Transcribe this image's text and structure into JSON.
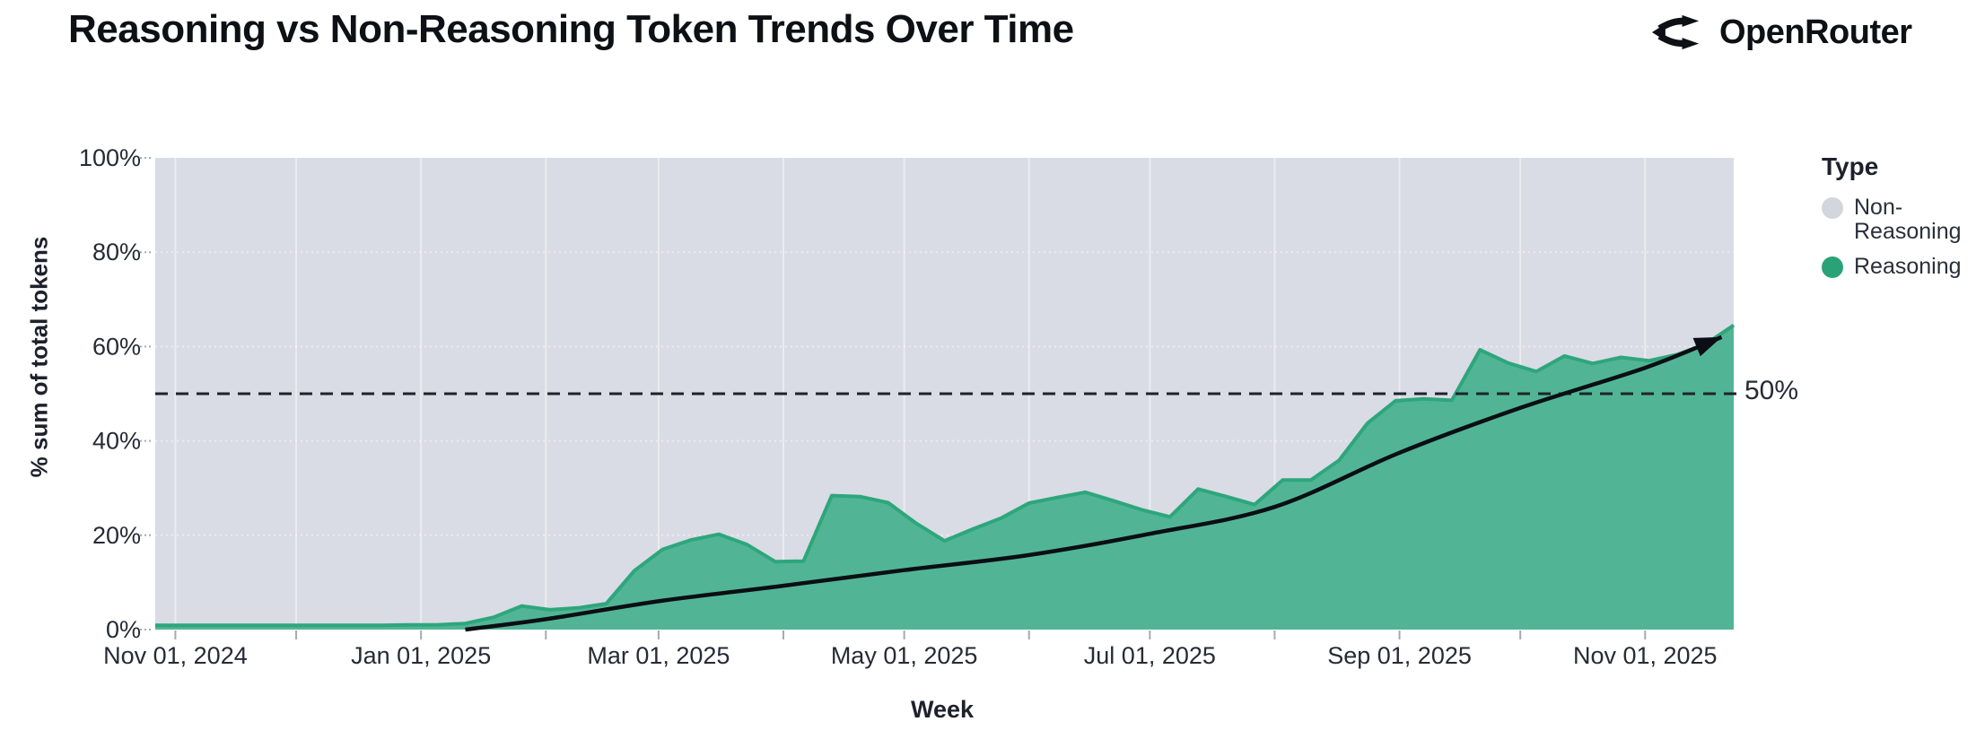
{
  "header": {
    "title": "Reasoning vs Non-Reasoning Token Trends Over Time",
    "brand": "OpenRouter"
  },
  "colors": {
    "plot_bg": "#d9dce4",
    "area_fill": "#51b595",
    "area_stroke": "#2ea67c",
    "trend_line": "#0b0e14",
    "dashed_rule": "#1e222c",
    "gridline": "rgba(255,255,255,0.45)",
    "tick_mark": "#a3aab6",
    "axis_text": "#262b35",
    "legend_nonreasoning_dot": "#d3d6dc",
    "legend_reasoning_dot": "#2aa277"
  },
  "chart_data": {
    "type": "area",
    "stacked_percent": true,
    "title": "Reasoning vs Non-Reasoning Token Trends Over Time",
    "xlabel": "Week",
    "ylabel": "% sum of total tokens",
    "x_domain": [
      "2024-10-27",
      "2025-11-23"
    ],
    "ylim": [
      0,
      100
    ],
    "grid": "monthly vertical, dotted horizontal at 20/40/60/80",
    "legend_position": "right",
    "y_ticks": [
      {
        "value": 0,
        "label": "0%"
      },
      {
        "value": 20,
        "label": "20%"
      },
      {
        "value": 40,
        "label": "40%"
      },
      {
        "value": 60,
        "label": "60%"
      },
      {
        "value": 80,
        "label": "80%"
      },
      {
        "value": 100,
        "label": "100%"
      }
    ],
    "x_ticks": [
      {
        "date": "2024-11-01",
        "label": "Nov 01, 2024"
      },
      {
        "date": "2025-01-01",
        "label": "Jan 01, 2025"
      },
      {
        "date": "2025-03-01",
        "label": "Mar 01, 2025"
      },
      {
        "date": "2025-05-01",
        "label": "May 01, 2025"
      },
      {
        "date": "2025-07-01",
        "label": "Jul 01, 2025"
      },
      {
        "date": "2025-09-01",
        "label": "Sep 01, 2025"
      },
      {
        "date": "2025-11-01",
        "label": "Nov 01, 2025"
      }
    ],
    "series": [
      {
        "name": "Reasoning",
        "unit": "% of total tokens",
        "points": [
          [
            "2024-10-27",
            0.9
          ],
          [
            "2024-11-03",
            0.9
          ],
          [
            "2024-11-10",
            0.9
          ],
          [
            "2024-11-17",
            0.9
          ],
          [
            "2024-11-24",
            0.9
          ],
          [
            "2024-12-01",
            0.9
          ],
          [
            "2024-12-08",
            0.9
          ],
          [
            "2024-12-15",
            0.9
          ],
          [
            "2024-12-22",
            0.9
          ],
          [
            "2024-12-29",
            1.0
          ],
          [
            "2025-01-05",
            1.0
          ],
          [
            "2025-01-12",
            1.3
          ],
          [
            "2025-01-19",
            2.6
          ],
          [
            "2025-01-26",
            5.0
          ],
          [
            "2025-02-02",
            4.2
          ],
          [
            "2025-02-09",
            4.6
          ],
          [
            "2025-02-16",
            5.5
          ],
          [
            "2025-02-23",
            12.5
          ],
          [
            "2025-03-02",
            17.0
          ],
          [
            "2025-03-09",
            19.0
          ],
          [
            "2025-03-16",
            20.2
          ],
          [
            "2025-03-23",
            18.0
          ],
          [
            "2025-03-30",
            14.4
          ],
          [
            "2025-04-06",
            14.5
          ],
          [
            "2025-04-13",
            28.4
          ],
          [
            "2025-04-20",
            28.2
          ],
          [
            "2025-04-27",
            26.9
          ],
          [
            "2025-05-04",
            22.5
          ],
          [
            "2025-05-11",
            18.8
          ],
          [
            "2025-05-18",
            21.3
          ],
          [
            "2025-05-25",
            23.6
          ],
          [
            "2025-06-01",
            26.8
          ],
          [
            "2025-06-08",
            28.0
          ],
          [
            "2025-06-15",
            29.1
          ],
          [
            "2025-06-22",
            27.3
          ],
          [
            "2025-06-29",
            25.4
          ],
          [
            "2025-07-06",
            23.9
          ],
          [
            "2025-07-13",
            29.8
          ],
          [
            "2025-07-20",
            28.2
          ],
          [
            "2025-07-27",
            26.5
          ],
          [
            "2025-08-03",
            31.7
          ],
          [
            "2025-08-10",
            31.7
          ],
          [
            "2025-08-17",
            35.9
          ],
          [
            "2025-08-24",
            43.7
          ],
          [
            "2025-08-31",
            48.5
          ],
          [
            "2025-09-07",
            48.9
          ],
          [
            "2025-09-14",
            48.6
          ],
          [
            "2025-09-21",
            59.3
          ],
          [
            "2025-09-28",
            56.5
          ],
          [
            "2025-10-05",
            54.7
          ],
          [
            "2025-10-12",
            58.0
          ],
          [
            "2025-10-19",
            56.4
          ],
          [
            "2025-10-26",
            57.7
          ],
          [
            "2025-11-02",
            57.0
          ],
          [
            "2025-11-09",
            58.3
          ],
          [
            "2025-11-16",
            60.5
          ],
          [
            "2025-11-23",
            64.5
          ]
        ]
      },
      {
        "name": "Non-Reasoning",
        "unit": "% of total tokens",
        "fills_remainder_to_100pct": true
      }
    ],
    "annotation": {
      "label": "50%",
      "value": 50
    },
    "trend": {
      "description": "black exponential trend arrow",
      "points": [
        [
          "2025-01-12",
          0
        ],
        [
          "2025-02-01",
          2.2
        ],
        [
          "2025-03-01",
          6.0
        ],
        [
          "2025-04-01",
          9.3
        ],
        [
          "2025-05-01",
          12.6
        ],
        [
          "2025-06-01",
          15.8
        ],
        [
          "2025-07-01",
          20.3
        ],
        [
          "2025-08-01",
          26.0
        ],
        [
          "2025-09-01",
          37.5
        ],
        [
          "2025-10-01",
          47.0
        ],
        [
          "2025-11-01",
          55.5
        ],
        [
          "2025-11-20",
          62.0
        ]
      ]
    },
    "legend": {
      "title": "Type",
      "items": [
        {
          "label": "Non-Reasoning",
          "color": "#d3d6dc"
        },
        {
          "label": "Reasoning",
          "color": "#2aa277"
        }
      ]
    }
  }
}
